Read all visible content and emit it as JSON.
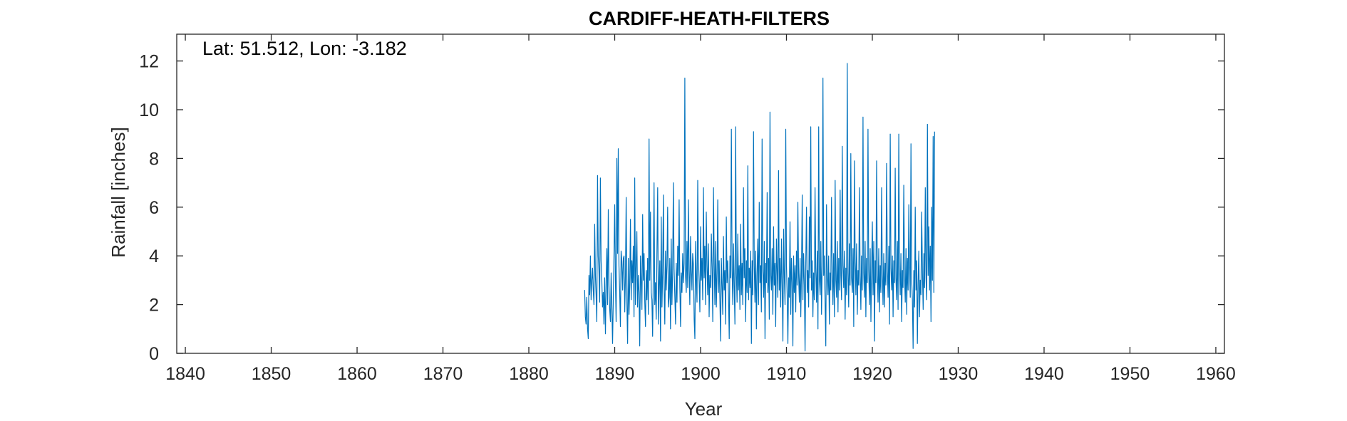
{
  "chart_data": {
    "type": "line",
    "title": "CARDIFF-HEATH-FILTERS",
    "annotation": "Lat: 51.512, Lon: -3.182",
    "xlabel": "Year",
    "ylabel": "Rainfall [inches]",
    "xlim": [
      1839,
      1961
    ],
    "ylim": [
      0,
      13.1
    ],
    "xticks": [
      1840,
      1850,
      1860,
      1870,
      1880,
      1890,
      1900,
      1910,
      1920,
      1930,
      1940,
      1950,
      1960
    ],
    "yticks": [
      0,
      2,
      4,
      6,
      8,
      10,
      12
    ],
    "grid": false,
    "colors": {
      "series": "#0072BD",
      "axes": "#262626"
    },
    "series": [
      {
        "x_start": 1886.5,
        "x_step": 0.08333,
        "values": [
          2.6,
          1.5,
          1.2,
          2.3,
          1.0,
          0.6,
          3.2,
          2.4,
          4.0,
          2.2,
          3.0,
          3.5,
          2.6,
          2.0,
          5.3,
          3.2,
          2.4,
          1.3,
          7.3,
          4.0,
          3.4,
          2.1,
          7.2,
          3.8,
          3.0,
          1.9,
          2.5,
          1.2,
          3.1,
          0.8,
          3.0,
          4.3,
          2.0,
          5.9,
          2.8,
          1.8,
          1.3,
          3.3,
          1.9,
          0.4,
          2.2,
          4.0,
          6.1,
          3.0,
          1.3,
          8.0,
          4.1,
          8.4,
          3.6,
          2.5,
          1.1,
          4.2,
          3.8,
          2.6,
          3.9,
          4.0,
          1.7,
          3.2,
          6.4,
          2.1,
          0.4,
          3.9,
          1.6,
          2.8,
          5.5,
          2.2,
          3.8,
          2.9,
          4.4,
          1.5,
          7.2,
          2.0,
          3.6,
          5.0,
          1.9,
          3.2,
          2.5,
          0.3,
          4.0,
          3.0,
          1.8,
          5.7,
          3.0,
          4.1,
          2.1,
          1.1,
          3.4,
          2.2,
          3.9,
          1.6,
          8.8,
          3.0,
          5.8,
          2.5,
          2.2,
          0.7,
          3.4,
          7.0,
          2.0,
          2.9,
          1.4,
          4.0,
          6.8,
          1.2,
          2.8,
          3.8,
          0.5,
          5.6,
          1.9,
          3.3,
          6.5,
          2.7,
          1.2,
          4.2,
          2.6,
          3.6,
          6.0,
          1.9,
          2.3,
          3.9,
          1.0,
          4.7,
          2.0,
          3.3,
          7.0,
          3.5,
          2.4,
          1.2,
          3.7,
          2.1,
          4.4,
          3.2,
          6.3,
          2.7,
          1.1,
          3.3,
          2.5,
          4.1,
          2.9,
          3.7,
          11.3,
          3.2,
          2.5,
          4.6,
          2.7,
          6.3,
          3.4,
          2.0,
          4.8,
          3.4,
          2.6,
          4.1,
          3.6,
          1.4,
          0.6,
          4.6,
          3.0,
          2.1,
          7.1,
          3.8,
          2.9,
          1.7,
          5.2,
          3.0,
          3.9,
          2.2,
          6.8,
          3.1,
          4.4,
          2.0,
          5.8,
          3.6,
          2.4,
          4.5,
          1.5,
          3.2,
          2.7,
          4.9,
          3.5,
          1.3,
          6.8,
          3.7,
          2.0,
          4.6,
          1.9,
          3.3,
          6.3,
          2.5,
          3.8,
          2.2,
          0.5,
          3.9,
          2.8,
          1.6,
          4.8,
          2.6,
          3.4,
          1.2,
          5.6,
          2.9,
          3.8,
          2.3,
          0.6,
          4.0,
          3.1,
          9.2,
          3.4,
          2.0,
          4.5,
          2.7,
          1.2,
          9.3,
          3.3,
          2.1,
          4.9,
          2.6,
          3.6,
          1.8,
          5.3,
          2.4,
          3.7,
          2.0,
          6.8,
          3.1,
          4.3,
          1.3,
          3.8,
          2.5,
          7.7,
          2.2,
          3.5,
          2.7,
          4.2,
          0.4,
          3.8,
          2.4,
          9.1,
          3.6,
          2.1,
          4.2,
          1.0,
          3.3,
          4.7,
          2.0,
          6.2,
          2.9,
          3.6,
          1.7,
          8.8,
          3.5,
          2.3,
          4.6,
          0.6,
          3.7,
          2.9,
          6.6,
          2.5,
          3.9,
          1.4,
          9.9,
          3.2,
          2.6,
          4.3,
          1.6,
          5.2,
          2.8,
          3.7,
          1.1,
          4.7,
          3.4,
          2.3,
          7.5,
          2.6,
          3.9,
          1.9,
          4.7,
          2.7,
          0.5,
          5.1,
          3.1,
          2.0,
          9.2,
          3.6,
          2.4,
          0.4,
          3.1,
          2.3,
          5.4,
          1.6,
          3.9,
          2.9,
          0.3,
          4.0,
          2.5,
          3.6,
          1.7,
          4.2,
          2.8,
          6.2,
          3.3,
          2.1,
          3.9,
          1.5,
          3.4,
          6.5,
          2.2,
          4.1,
          2.8,
          0.1,
          3.7,
          6.0,
          2.5,
          3.4,
          1.9,
          5.6,
          3.1,
          9.3,
          2.6,
          3.8,
          1.5,
          3.3,
          2.2,
          6.8,
          3.5,
          2.1,
          4.2,
          1.0,
          9.3,
          3.0,
          2.4,
          4.6,
          1.6,
          3.8,
          11.3,
          3.2,
          4.0,
          2.1,
          0.3,
          6.1,
          3.1,
          2.4,
          4.0,
          1.2,
          3.3,
          2.6,
          6.4,
          3.3,
          2.0,
          4.1,
          1.5,
          7.1,
          3.0,
          2.3,
          4.6,
          1.7,
          3.9,
          2.6,
          6.7,
          3.2,
          2.2,
          8.5,
          3.6,
          2.7,
          4.2,
          1.4,
          3.5,
          2.4,
          11.9,
          3.3,
          1.9,
          4.5,
          2.8,
          8.2,
          3.1,
          2.5,
          4.3,
          1.1,
          7.9,
          3.8,
          2.4,
          4.5,
          1.6,
          3.4,
          2.8,
          6.8,
          3.2,
          1.8,
          4.0,
          2.6,
          9.7,
          3.3,
          2.3,
          4.6,
          1.5,
          3.9,
          2.9,
          9.2,
          3.4,
          2.0,
          4.3,
          1.3,
          3.6,
          5.4,
          2.4,
          4.6,
          0.5,
          3.8,
          2.9,
          7.9,
          3.2,
          2.1,
          4.3,
          1.7,
          3.6,
          2.5,
          6.8,
          3.3,
          2.0,
          4.1,
          1.9,
          3.7,
          2.8,
          7.8,
          3.4,
          2.3,
          4.4,
          1.2,
          9.0,
          3.5,
          2.6,
          4.0,
          1.5,
          3.8,
          2.9,
          7.6,
          3.1,
          2.2,
          4.6,
          1.8,
          9.0,
          3.6,
          2.4,
          4.1,
          1.3,
          3.4,
          2.7,
          6.9,
          3.2,
          2.1,
          4.3,
          1.6,
          3.9,
          2.6,
          6.1,
          3.5,
          2.3,
          8.6,
          3.0,
          2.2,
          0.2,
          3.4,
          1.9,
          6.0,
          2.6,
          3.8,
          0.4,
          2.9,
          4.2,
          1.5,
          3.0,
          2.4,
          5.8,
          3.3,
          1.8,
          4.1,
          2.7,
          6.8,
          3.1,
          2.2,
          9.4,
          3.2,
          5.2,
          2.6,
          4.4,
          1.3,
          6.0,
          3.0,
          8.9,
          2.5,
          9.1
        ]
      }
    ]
  }
}
